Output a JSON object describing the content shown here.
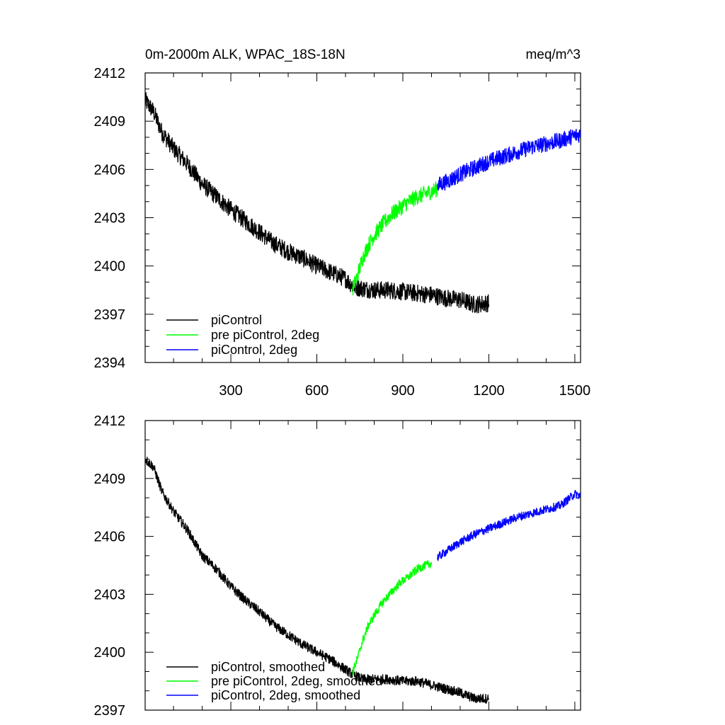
{
  "chart_data": [
    {
      "type": "line",
      "title": "0m-2000m ALK, WPAC_18S-18N",
      "units": "meq/m^3",
      "xlabel": "",
      "ylabel": "",
      "xlim": [
        1,
        1520
      ],
      "ylim": [
        2394,
        2412
      ],
      "xticks": [
        300,
        600,
        900,
        1200,
        1500
      ],
      "yticks": [
        2412,
        2409,
        2406,
        2403,
        2400,
        2397,
        2394
      ],
      "legend_position": "bottom-left",
      "series": [
        {
          "name": "piControl",
          "color": "#000000",
          "noise": 0.55,
          "x": [
            1,
            30,
            60,
            100,
            150,
            200,
            250,
            300,
            350,
            400,
            450,
            500,
            550,
            600,
            650,
            700,
            730,
            760,
            800,
            850,
            900,
            950,
            1000,
            1050,
            1100,
            1150,
            1200
          ],
          "y": [
            2410.3,
            2409.6,
            2408.3,
            2407.3,
            2406.3,
            2405.1,
            2404.3,
            2403.5,
            2402.8,
            2402.1,
            2401.4,
            2400.9,
            2400.5,
            2400.0,
            2399.6,
            2399.2,
            2398.7,
            2398.6,
            2398.5,
            2398.5,
            2398.4,
            2398.3,
            2398.2,
            2398.0,
            2397.9,
            2397.6,
            2397.7
          ]
        },
        {
          "name": "pre piControl, 2deg",
          "color": "#00ff00",
          "noise": 0.5,
          "x": [
            725,
            740,
            760,
            780,
            800,
            830,
            860,
            890,
            920,
            950,
            980,
            1010,
            1020
          ],
          "y": [
            2398.6,
            2399.3,
            2400.5,
            2401.3,
            2401.9,
            2402.6,
            2403.2,
            2403.6,
            2404.0,
            2404.3,
            2404.5,
            2404.7,
            2404.8
          ]
        },
        {
          "name": "piControl, 2deg",
          "color": "#0000ff",
          "noise": 0.5,
          "x": [
            1020,
            1060,
            1100,
            1150,
            1200,
            1250,
            1300,
            1350,
            1400,
            1450,
            1500,
            1520
          ],
          "y": [
            2405.0,
            2405.3,
            2405.7,
            2406.1,
            2406.5,
            2406.8,
            2407.1,
            2407.4,
            2407.6,
            2407.8,
            2408.1,
            2408.2
          ]
        }
      ]
    },
    {
      "type": "line",
      "title": "",
      "xlabel": "",
      "ylabel": "",
      "xlim": [
        1,
        1520
      ],
      "ylim": [
        2397,
        2412
      ],
      "xticks": [
        300,
        600,
        900,
        1200,
        1500
      ],
      "yticks": [
        2412,
        2409,
        2406,
        2403,
        2400,
        2397
      ],
      "legend_position": "bottom-left",
      "series": [
        {
          "name": "piControl, smoothed",
          "color": "#000000",
          "noise": 0.25,
          "x": [
            1,
            30,
            60,
            100,
            150,
            200,
            250,
            300,
            350,
            400,
            450,
            500,
            550,
            600,
            650,
            700,
            730,
            760,
            800,
            850,
            900,
            950,
            1000,
            1050,
            1100,
            1150,
            1200
          ],
          "y": [
            2410.0,
            2409.6,
            2408.3,
            2407.3,
            2406.3,
            2405.0,
            2404.3,
            2403.4,
            2402.7,
            2402.1,
            2401.4,
            2400.9,
            2400.4,
            2400.0,
            2399.6,
            2399.1,
            2398.8,
            2398.6,
            2398.6,
            2398.6,
            2398.5,
            2398.5,
            2398.3,
            2398.1,
            2397.9,
            2397.6,
            2397.6
          ]
        },
        {
          "name": "pre piControl, 2deg, smoothed",
          "color": "#00ff00",
          "noise": 0.22,
          "x": [
            725,
            740,
            760,
            780,
            800,
            830,
            860,
            890,
            920,
            950,
            980,
            1000
          ],
          "y": [
            2399.0,
            2399.6,
            2400.6,
            2401.4,
            2401.9,
            2402.6,
            2403.1,
            2403.6,
            2403.9,
            2404.3,
            2404.5,
            2404.6
          ]
        },
        {
          "name": "piControl, 2deg, smoothed",
          "color": "#0000ff",
          "noise": 0.22,
          "x": [
            1020,
            1060,
            1100,
            1150,
            1200,
            1250,
            1300,
            1350,
            1400,
            1450,
            1500,
            1520
          ],
          "y": [
            2404.9,
            2405.3,
            2405.7,
            2406.1,
            2406.4,
            2406.7,
            2407.0,
            2407.2,
            2407.4,
            2407.6,
            2408.2,
            2408.1
          ]
        }
      ]
    }
  ]
}
